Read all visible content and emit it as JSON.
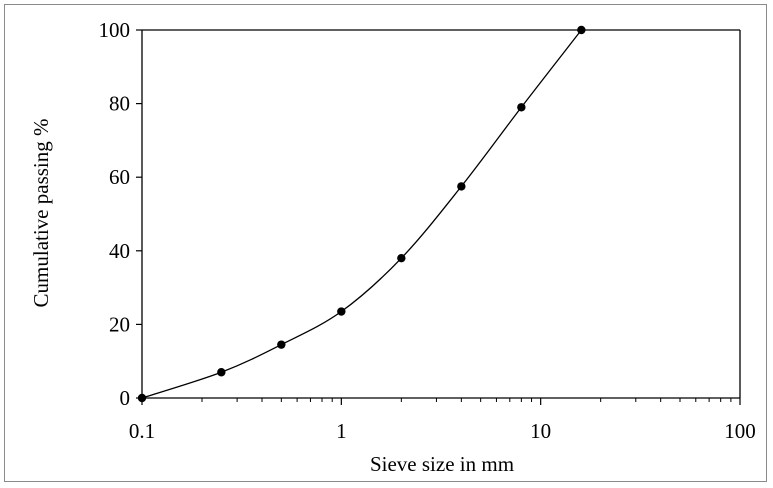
{
  "chart_data": {
    "type": "scatter",
    "title": "",
    "xlabel": "Sieve size in mm",
    "ylabel": "Cumulative passing %",
    "xscale": "log",
    "xlim": [
      0.1,
      100
    ],
    "ylim": [
      0,
      100
    ],
    "xticks": [
      0.1,
      1,
      10,
      100
    ],
    "xtick_labels": [
      "0.1",
      "1",
      "10",
      "100"
    ],
    "yticks": [
      0,
      20,
      40,
      60,
      80,
      100
    ],
    "ytick_labels": [
      "0",
      "20",
      "40",
      "60",
      "80",
      "100"
    ],
    "grid": false,
    "legend": "none",
    "series": [
      {
        "x": [
          0.1,
          0.25,
          0.5,
          1,
          2,
          4,
          8,
          16
        ],
        "y": [
          0,
          7,
          14.5,
          23.5,
          38,
          57.5,
          79,
          100
        ],
        "marker": "circle",
        "line": "smooth",
        "color": "#000000"
      }
    ]
  }
}
